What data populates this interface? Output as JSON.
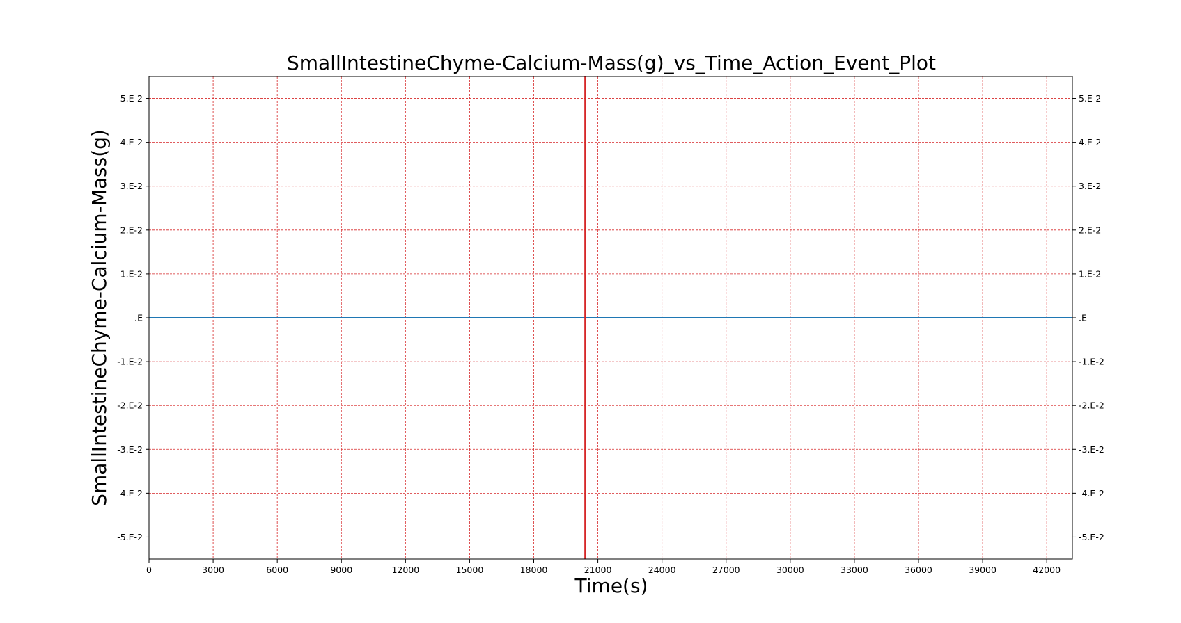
{
  "chart_data": {
    "type": "line",
    "title": "SmallIntestineChyme-Calcium-Mass(g)_vs_Time_Action_Event_Plot",
    "xlabel": "Time(s)",
    "ylabel": "SmallIntestineChyme-Calcium-Mass(g)",
    "xlim": [
      0,
      43200
    ],
    "ylim": [
      -0.055,
      0.055
    ],
    "x_ticks": [
      0,
      3000,
      6000,
      9000,
      12000,
      15000,
      18000,
      21000,
      24000,
      27000,
      30000,
      33000,
      36000,
      39000,
      42000
    ],
    "x_tick_labels": [
      "0",
      "3000",
      "6000",
      "9000",
      "12000",
      "15000",
      "18000",
      "21000",
      "24000",
      "27000",
      "30000",
      "33000",
      "36000",
      "39000",
      "42000"
    ],
    "y_ticks": [
      0.05,
      0.04,
      0.03,
      0.02,
      0.01,
      0,
      -0.01,
      -0.02,
      -0.03,
      -0.04,
      -0.05
    ],
    "y_tick_labels": [
      "5.E-2",
      "4.E-2",
      "3.E-2",
      "2.E-2",
      "1.E-2",
      ".E",
      "-1.E-2",
      "-2.E-2",
      "-3.E-2",
      "-4.E-2",
      "-5.E-2"
    ],
    "grid": true,
    "grid_style": "dashed",
    "series": [
      {
        "x": [
          0,
          43200
        ],
        "y": [
          0,
          0
        ],
        "color": "#1f77b4"
      }
    ],
    "event_lines": [
      {
        "x": 20400,
        "color": "#d62728"
      }
    ],
    "colors": {
      "grid": "#d62728",
      "axis": "#000000",
      "series": "#1f77b4",
      "event": "#d62728"
    }
  }
}
